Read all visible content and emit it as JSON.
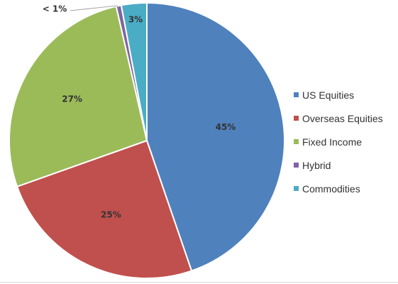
{
  "chart_data": {
    "type": "pie",
    "categories": [
      "US Equities",
      "Overseas Equities",
      "Fixed Income",
      "Hybrid",
      "Commodities"
    ],
    "values": [
      45,
      25,
      27,
      0.6,
      3
    ],
    "data_labels": [
      "45%",
      "25%",
      "27%",
      "< 1%",
      "3%"
    ],
    "colors": [
      "#4f81bd",
      "#c0504d",
      "#9bbb59",
      "#8064a2",
      "#4bacc6"
    ],
    "start_angle": "12 o'clock",
    "direction": "clockwise",
    "legend": "right"
  }
}
